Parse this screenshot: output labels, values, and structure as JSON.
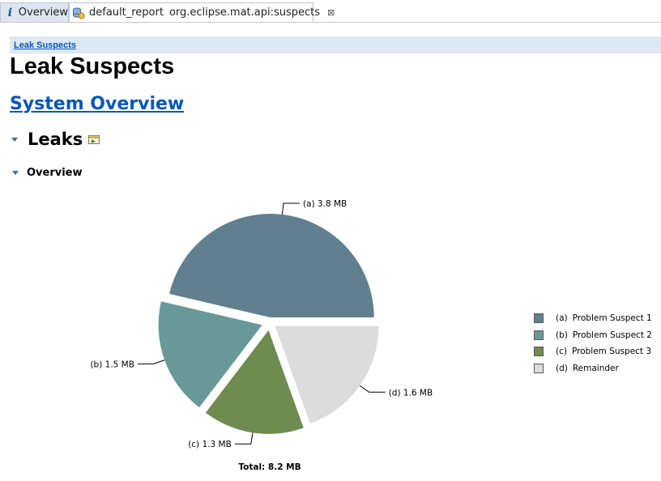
{
  "tabs": [
    {
      "label": "Overview",
      "icon": "info-icon"
    },
    {
      "label": "default_report",
      "secondary": "org.eclipse.mat.api:suspects",
      "icon": "report-icon",
      "close": "⊠"
    }
  ],
  "breadcrumb": {
    "label": "Leak Suspects"
  },
  "page": {
    "title": "Leak Suspects",
    "system_overview_link": "System Overview"
  },
  "leaks_section": {
    "title": "Leaks",
    "icon": "query-icon"
  },
  "overview_section": {
    "title": "Overview"
  },
  "colors": {
    "a": "#617f8e",
    "b": "#699898",
    "c": "#6e8b50",
    "d": "#dcdcdc",
    "link": "#0a56b8"
  },
  "chart_data": {
    "type": "pie",
    "title": "",
    "total_label": "Total: 8.2 MB",
    "slices": [
      {
        "key": "(a)",
        "name": "Problem Suspect 1",
        "value": 3.8,
        "label": "3.8 MB",
        "color": "#617f8e"
      },
      {
        "key": "(b)",
        "name": "Problem Suspect 2",
        "value": 1.5,
        "label": "1.5 MB",
        "color": "#699898"
      },
      {
        "key": "(c)",
        "name": "Problem Suspect 3",
        "value": 1.3,
        "label": "1.3 MB",
        "color": "#6e8b50"
      },
      {
        "key": "(d)",
        "name": "Remainder",
        "value": 1.6,
        "label": "1.6 MB",
        "color": "#dcdcdc"
      }
    ],
    "legend_position": "right"
  }
}
